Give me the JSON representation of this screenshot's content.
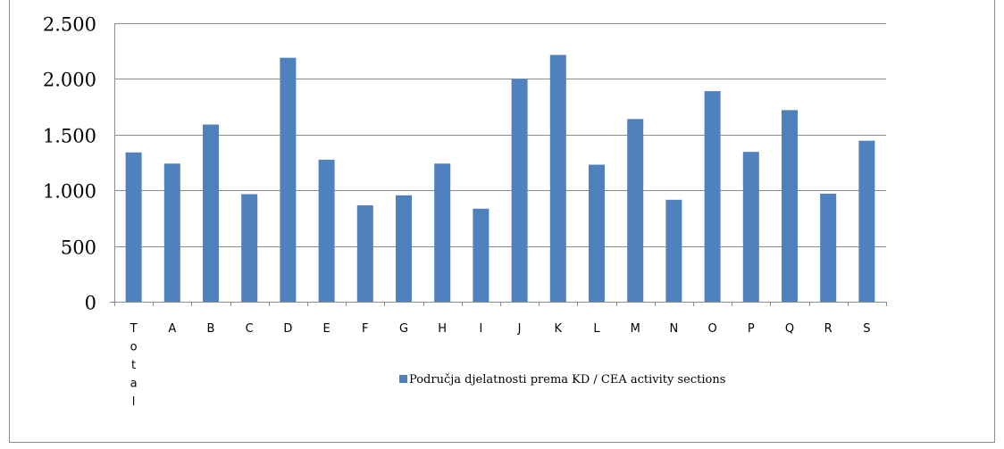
{
  "chart_data": {
    "type": "bar",
    "categories": [
      "Total",
      "A",
      "B",
      "C",
      "D",
      "E",
      "F",
      "G",
      "H",
      "I",
      "J",
      "K",
      "L",
      "M",
      "N",
      "O",
      "P",
      "Q",
      "R",
      "S"
    ],
    "series": [
      {
        "name": "Područja djelatnosti prema KD / CEA activity sections",
        "values": [
          1340,
          1240,
          1590,
          965,
          2190,
          1275,
          865,
          955,
          1240,
          835,
          2000,
          2215,
          1230,
          1640,
          915,
          1890,
          1345,
          1720,
          970,
          1445
        ],
        "color": "#4f81bd"
      }
    ],
    "ylim": [
      0,
      2500
    ],
    "yticks": [
      0,
      500,
      1000,
      1500,
      2000,
      2500
    ],
    "ytick_labels": [
      "0",
      "500",
      "1.000",
      "1.500",
      "2.000",
      "2.500"
    ],
    "grid": true,
    "legend_position": "bottom"
  }
}
